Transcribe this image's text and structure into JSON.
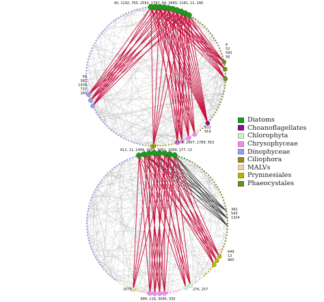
{
  "legend": [
    {
      "key": "diatoms",
      "label": "Diatoms",
      "color": "#1f9a1f"
    },
    {
      "key": "choano",
      "label": "Choanoflagellates",
      "color": "#8e0c8e"
    },
    {
      "key": "chloro",
      "label": "Chlorophyta",
      "color": "#ccf2cc"
    },
    {
      "key": "chryso",
      "label": "Chrysophyceae",
      "color": "#f08cf0"
    },
    {
      "key": "dino",
      "label": "Dinophyceae",
      "color": "#9c9cf0"
    },
    {
      "key": "cilio",
      "label": "Ciliophora",
      "color": "#908a2a"
    },
    {
      "key": "malv",
      "label": "MALVs",
      "color": "#f4d6a6"
    },
    {
      "key": "prym",
      "label": "Prymnesiales",
      "color": "#b3b800"
    },
    {
      "key": "phaeo",
      "label": "Phaeocystales",
      "color": "#6c8e26"
    }
  ],
  "diagrams": [
    {
      "name": "top",
      "labels": [
        {
          "name": "diatom-hub-label",
          "text": "40, 1192, 765, 2562, 1797, 64, 2640, 1161, 11, 166"
        },
        {
          "name": "phaeo-label-1",
          "text": "6"
        },
        {
          "name": "phaeo-label-2",
          "text": "52"
        },
        {
          "name": "phaeo-label-3",
          "text": "595"
        },
        {
          "name": "phaeo-label-4",
          "text": "56"
        },
        {
          "name": "dino-label-1",
          "text": "55"
        },
        {
          "name": "dino-label-2",
          "text": "382"
        },
        {
          "name": "dino-label-3",
          "text": "1439"
        },
        {
          "name": "dino-label-4",
          "text": "731"
        },
        {
          "name": "dino-label-5",
          "text": "180"
        },
        {
          "name": "choano-label-1",
          "text": "102"
        },
        {
          "name": "choano-label-2",
          "text": "919"
        },
        {
          "name": "prym-label",
          "text": "117"
        },
        {
          "name": "chryso-label",
          "text": "93, 4, 2807, 1789, 563"
        }
      ]
    },
    {
      "name": "bottom",
      "labels": [
        {
          "name": "diatom-hub-label",
          "text": "612, 11, 1444, 3085, 3061, 1069, 177, 13"
        },
        {
          "name": "cilio-label-1",
          "text": "392"
        },
        {
          "name": "cilio-label-2",
          "text": "543"
        },
        {
          "name": "cilio-label-3",
          "text": "1324"
        },
        {
          "name": "prym-label-1",
          "text": "649"
        },
        {
          "name": "prym-label-2",
          "text": "13"
        },
        {
          "name": "prym-label-3",
          "text": "960"
        },
        {
          "name": "malv-label",
          "text": "1073"
        },
        {
          "name": "chloro-label",
          "text": "276, 257"
        },
        {
          "name": "chryso-label",
          "text": "684, 119, 3090, 330"
        }
      ]
    }
  ]
}
